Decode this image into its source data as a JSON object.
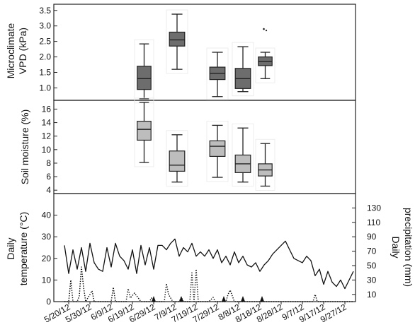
{
  "chart_data": [
    {
      "type": "box",
      "ylabel_lines": [
        "Microclimate",
        "VPD (kPa)"
      ],
      "ylim": [
        0.6,
        3.7
      ],
      "yticks": [
        1.0,
        1.5,
        2.0,
        2.5,
        3.0,
        3.5
      ],
      "ytick_labels": [
        "1.0",
        "1.5",
        "2.0",
        "2.5",
        "3.0",
        "3.5"
      ],
      "box_color": "#6d6d6d",
      "boxes": [
        {
          "start": "2012-06-20",
          "end": "2012-06-29",
          "min": 0.65,
          "q1": 0.95,
          "median": 1.3,
          "q3": 1.7,
          "max": 2.42
        },
        {
          "start": "2012-07-05",
          "end": "2012-07-15",
          "min": 1.6,
          "q1": 2.35,
          "median": 2.55,
          "q3": 2.8,
          "max": 3.38
        },
        {
          "start": "2012-07-24",
          "end": "2012-08-03",
          "min": 0.72,
          "q1": 1.27,
          "median": 1.47,
          "q3": 1.67,
          "max": 2.15
        },
        {
          "start": "2012-08-05",
          "end": "2012-08-15",
          "min": 0.88,
          "q1": 0.98,
          "median": 1.3,
          "q3": 1.63,
          "max": 2.33
        },
        {
          "start": "2012-08-16",
          "end": "2012-08-25",
          "min": 1.3,
          "q1": 1.72,
          "median": 1.85,
          "q3": 2.0,
          "max": 2.15,
          "outliers": [
            2.9
          ]
        }
      ]
    },
    {
      "type": "box",
      "ylabel": "Soil moisture (%)",
      "ylim": [
        3.5,
        17.3
      ],
      "yticks": [
        4,
        6,
        8,
        10,
        12,
        14,
        16
      ],
      "ytick_labels": [
        "4",
        "6",
        "8",
        "10",
        "12",
        "14",
        "16"
      ],
      "box_color": "#bdbdbd",
      "boxes": [
        {
          "start": "2012-06-20",
          "end": "2012-06-29",
          "min": 8.1,
          "q1": 11.4,
          "median": 13.0,
          "q3": 14.2,
          "max": 17.0
        },
        {
          "start": "2012-07-05",
          "end": "2012-07-15",
          "min": 5.2,
          "q1": 6.8,
          "median": 7.7,
          "q3": 9.8,
          "max": 12.2
        },
        {
          "start": "2012-07-24",
          "end": "2012-08-03",
          "min": 5.9,
          "q1": 9.0,
          "median": 10.5,
          "q3": 11.3,
          "max": 13.6
        },
        {
          "start": "2012-08-05",
          "end": "2012-08-15",
          "min": 5.2,
          "q1": 6.6,
          "median": 7.9,
          "q3": 9.2,
          "max": 13.2
        },
        {
          "start": "2012-08-16",
          "end": "2012-08-25",
          "min": 4.6,
          "q1": 6.1,
          "median": 7.0,
          "q3": 7.9,
          "max": 10.9
        }
      ]
    },
    {
      "type": "line",
      "ylabel_lines": [
        "Daily",
        "temperature (°C)"
      ],
      "y2label_lines": [
        "Daily",
        "precipitation (mm)"
      ],
      "ylim": [
        0,
        50
      ],
      "yticks": [
        0,
        10,
        20,
        30,
        40
      ],
      "ytick_labels": [
        "0",
        "10",
        "20",
        "30",
        "40"
      ],
      "y2lim": [
        0,
        150
      ],
      "y2ticks": [
        10,
        30,
        50,
        70,
        90,
        110,
        130
      ],
      "y2tick_labels": [
        "10",
        "30",
        "50",
        "70",
        "90",
        "110",
        "130"
      ],
      "xlim": [
        "2012-05-13",
        "2012-10-02"
      ],
      "xticks": [
        "2012-05-20",
        "2012-05-30",
        "2012-06-09",
        "2012-06-19",
        "2012-06-29",
        "2012-07-09",
        "2012-07-19",
        "2012-07-29",
        "2012-08-08",
        "2012-08-18",
        "2012-08-28",
        "2012-09-07",
        "2012-09-17",
        "2012-09-27"
      ],
      "xtick_labels": [
        "5/20/12",
        "5/30/12",
        "6/9/12",
        "6/19/12",
        "6/29/12",
        "7/9/12",
        "7/19/12",
        "7/29/12",
        "8/8/12",
        "8/18/12",
        "8/28/12",
        "9/7/12",
        "9/17/12",
        "9/27/12"
      ],
      "event_markers": [
        "2012-06-29",
        "2012-07-12",
        "2012-08-01",
        "2012-08-10",
        "2012-08-19"
      ],
      "series": [
        {
          "style": "solid",
          "axis": "left",
          "x": [
            "2012-05-18",
            "2012-05-20",
            "2012-05-22",
            "2012-05-24",
            "2012-05-26",
            "2012-05-28",
            "2012-05-30",
            "2012-06-01",
            "2012-06-03",
            "2012-06-05",
            "2012-06-07",
            "2012-06-09",
            "2012-06-11",
            "2012-06-13",
            "2012-06-15",
            "2012-06-17",
            "2012-06-19",
            "2012-06-21",
            "2012-06-23",
            "2012-06-25",
            "2012-06-27",
            "2012-06-29",
            "2012-07-01",
            "2012-07-03",
            "2012-07-05",
            "2012-07-07",
            "2012-07-09",
            "2012-07-11",
            "2012-07-13",
            "2012-07-15",
            "2012-07-17",
            "2012-07-19",
            "2012-07-21",
            "2012-07-23",
            "2012-07-25",
            "2012-07-27",
            "2012-07-29",
            "2012-07-31",
            "2012-08-02",
            "2012-08-04",
            "2012-08-06",
            "2012-08-08",
            "2012-08-10",
            "2012-08-12",
            "2012-08-14",
            "2012-08-16",
            "2012-08-18",
            "2012-08-20",
            "2012-08-22",
            "2012-08-24",
            "2012-08-26",
            "2012-08-28",
            "2012-08-30",
            "2012-09-01",
            "2012-09-03",
            "2012-09-05",
            "2012-09-07",
            "2012-09-09",
            "2012-09-11",
            "2012-09-13",
            "2012-09-15",
            "2012-09-17",
            "2012-09-19",
            "2012-09-21",
            "2012-09-23",
            "2012-09-25",
            "2012-09-27",
            "2012-09-29",
            "2012-10-01"
          ],
          "values": [
            26,
            13,
            24,
            15,
            25,
            14,
            27,
            18,
            15,
            14,
            25,
            16,
            27,
            21,
            19,
            15,
            24,
            13,
            26,
            17,
            25,
            15,
            26,
            26,
            24,
            27,
            29,
            21,
            25,
            23,
            27,
            21,
            23,
            21,
            24,
            20,
            24,
            18,
            21,
            17,
            23,
            18,
            21,
            17,
            16,
            18,
            14,
            17,
            19,
            22,
            24,
            26,
            28,
            24,
            20,
            19,
            18,
            21,
            19,
            12,
            15,
            8,
            14,
            9,
            7,
            10,
            6,
            10,
            14
          ]
        },
        {
          "style": "dotted",
          "axis": "right",
          "x": [
            "2012-05-18",
            "2012-05-20",
            "2012-05-21",
            "2012-05-22",
            "2012-05-24",
            "2012-05-25",
            "2012-05-26",
            "2012-05-27",
            "2012-05-28",
            "2012-05-30",
            "2012-05-31",
            "2012-06-01",
            "2012-06-03",
            "2012-06-09",
            "2012-06-10",
            "2012-06-11",
            "2012-06-13",
            "2012-06-16",
            "2012-06-17",
            "2012-06-18",
            "2012-06-20",
            "2012-06-23",
            "2012-06-27",
            "2012-06-28",
            "2012-06-29",
            "2012-07-04",
            "2012-07-05",
            "2012-07-06",
            "2012-07-08",
            "2012-07-11",
            "2012-07-12",
            "2012-07-13",
            "2012-07-16",
            "2012-07-17",
            "2012-07-18",
            "2012-07-19",
            "2012-07-20",
            "2012-07-22",
            "2012-07-25",
            "2012-07-27",
            "2012-07-28",
            "2012-07-30",
            "2012-08-02",
            "2012-08-03",
            "2012-08-04",
            "2012-08-06",
            "2012-08-09",
            "2012-08-14",
            "2012-08-20",
            "2012-08-28",
            "2012-09-06",
            "2012-09-12",
            "2012-09-13",
            "2012-09-14",
            "2012-09-17",
            "2012-09-22",
            "2012-09-27",
            "2012-10-01"
          ],
          "values": [
            0,
            0,
            30,
            0,
            0,
            8,
            48,
            20,
            0,
            10,
            15,
            0,
            0,
            0,
            20,
            0,
            0,
            0,
            18,
            5,
            12,
            0,
            0,
            5,
            0,
            0,
            25,
            10,
            0,
            0,
            6,
            0,
            0,
            40,
            0,
            45,
            0,
            0,
            0,
            6,
            0,
            0,
            0,
            10,
            16,
            0,
            0,
            0,
            0,
            0,
            0,
            0,
            10,
            0,
            0,
            0,
            0,
            0
          ]
        }
      ]
    }
  ]
}
